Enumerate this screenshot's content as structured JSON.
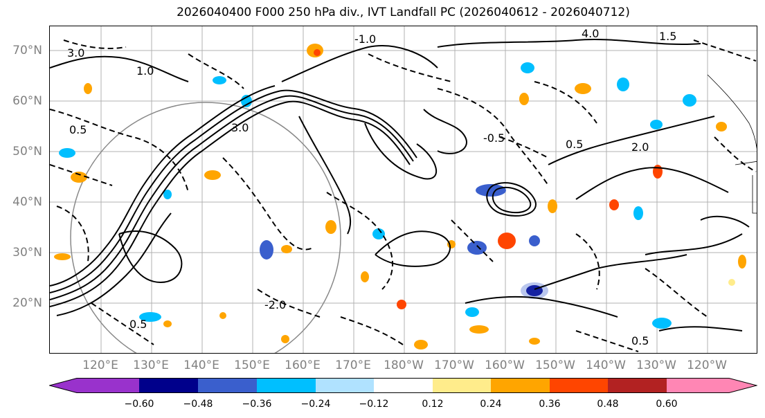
{
  "title": "2026040400 F000 250 hPa div., IVT Landfall PC (2026040612 - 2026040712)",
  "latitude_labels": [
    "70°N",
    "60°N",
    "50°N",
    "40°N",
    "30°N",
    "20°N"
  ],
  "longitude_labels": [
    "120°E",
    "130°E",
    "140°E",
    "150°E",
    "160°E",
    "170°E",
    "180°W",
    "170°W",
    "160°W",
    "150°W",
    "140°W",
    "130°W",
    "120°W"
  ],
  "contour_labels": [
    "4.0",
    "3.0",
    "2.0",
    "1.0",
    "0.5",
    "-0.5",
    "-1.0",
    "-2.0",
    "1.5"
  ],
  "colorbar": {
    "ticks": [
      "−0.60",
      "−0.48",
      "−0.36",
      "−0.24",
      "−0.12",
      "0.12",
      "0.24",
      "0.36",
      "0.48",
      "0.60"
    ],
    "colors": [
      "#9932CC",
      "#00008B",
      "#3A5FCD",
      "#00BFFF",
      "#B0E2FF",
      "#FFFFFF",
      "#FFEC8B",
      "#FFA500",
      "#FF4500",
      "#B22222",
      "#FF86B4"
    ]
  }
}
